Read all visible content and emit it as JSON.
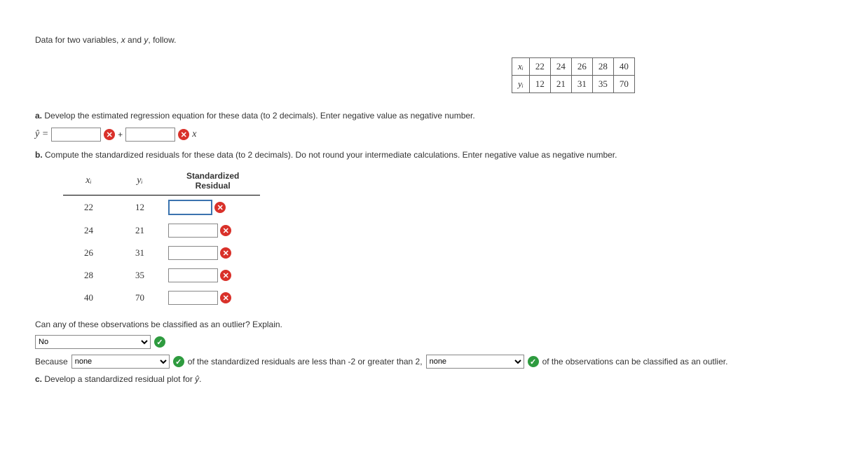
{
  "intro": "Data for two variables, x and y, follow.",
  "data_table": {
    "row1_header": "xᵢ",
    "row2_header": "yᵢ",
    "x_values": [
      "22",
      "24",
      "26",
      "28",
      "40"
    ],
    "y_values": [
      "12",
      "21",
      "31",
      "35",
      "70"
    ]
  },
  "part_a": {
    "label": "a.",
    "text": "Develop the estimated regression equation for these data (to 2 decimals). Enter negative value as negative number.",
    "yhat": "ŷ =",
    "plus": "+",
    "xvar": "x"
  },
  "part_b": {
    "label": "b.",
    "text": "Compute the standardized residuals for these data (to 2 decimals). Do not round your intermediate calculations. Enter negative value as negative number.",
    "col_x": "xᵢ",
    "col_y": "yᵢ",
    "col_res": "Standardized Residual",
    "rows": [
      {
        "x": "22",
        "y": "12"
      },
      {
        "x": "24",
        "y": "21"
      },
      {
        "x": "26",
        "y": "31"
      },
      {
        "x": "28",
        "y": "35"
      },
      {
        "x": "40",
        "y": "70"
      }
    ],
    "outlier_q": "Can any of these observations be classified as an outlier? Explain.",
    "select1": "No",
    "because": "Because",
    "select2": "none",
    "mid_text": "of the standardized residuals are less than -2 or greater than 2,",
    "select3": "none",
    "end_text": "of the observations can be classified as an outlier."
  },
  "part_c": {
    "label": "c.",
    "text": "Develop a standardized residual plot for ŷ."
  }
}
